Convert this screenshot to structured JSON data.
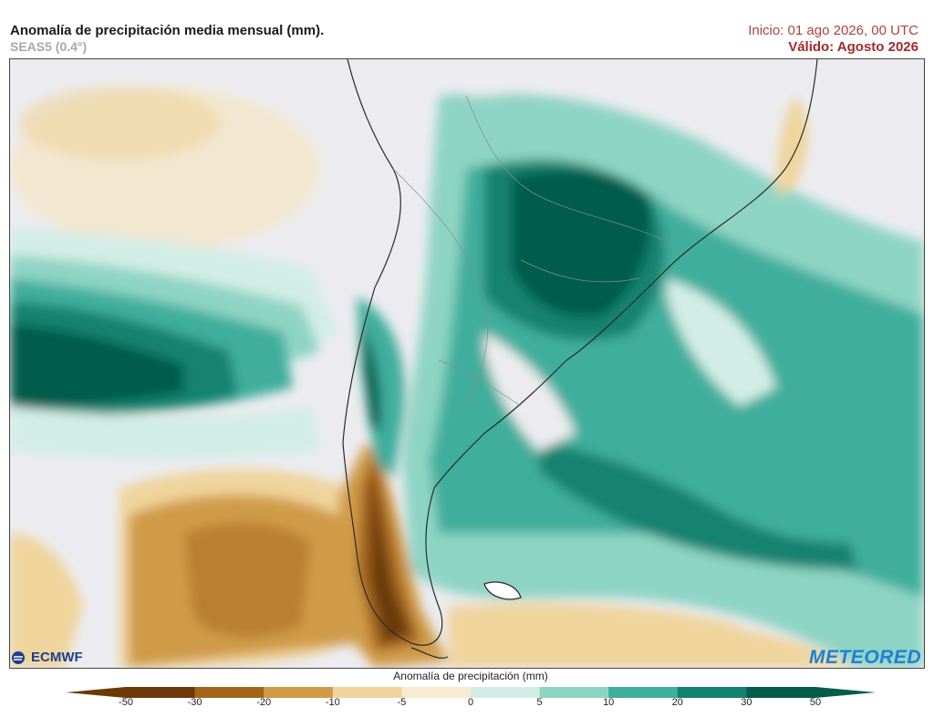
{
  "header": {
    "title": "Anomalía de precipitación media mensual (mm).",
    "subtitle": "SEAS5 (0.4°)",
    "init": "Inicio: 01 ago 2026, 00 UTC",
    "valid": "Válido: Agosto 2026"
  },
  "logos": {
    "left": "ECMWF",
    "right": "METEORED"
  },
  "colorbar": {
    "label": "Anomalía de precipitación (mm)",
    "ticks": [
      "-50",
      "-30",
      "-20",
      "-10",
      "-5",
      "0",
      "5",
      "10",
      "20",
      "30",
      "50"
    ],
    "colors": [
      "#6b3a08",
      "#a4651a",
      "#d09b48",
      "#efd49c",
      "#f7ecd2",
      "#ececf0",
      "#d2ede6",
      "#8ed4c4",
      "#3fae9c",
      "#12826f",
      "#055c4c"
    ]
  }
}
